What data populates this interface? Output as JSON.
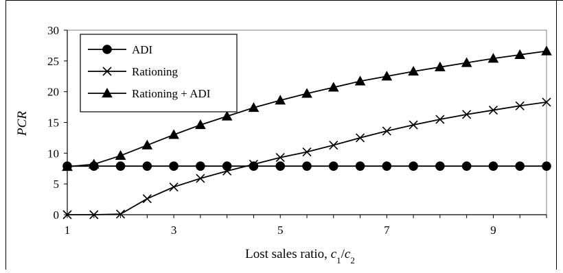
{
  "chart_data": {
    "type": "line",
    "xlabel": "Lost sales ratio, c₁/c₂",
    "ylabel": "PCR",
    "xlim": [
      1,
      10
    ],
    "ylim": [
      0,
      30
    ],
    "xticks": [
      1,
      3,
      5,
      7,
      9
    ],
    "yticks": [
      0,
      5,
      10,
      15,
      20,
      25,
      30
    ],
    "grid": false,
    "legend_position": "top-left",
    "x": [
      1,
      1.5,
      2,
      2.5,
      3,
      3.5,
      4,
      4.5,
      5,
      5.5,
      6,
      6.5,
      7,
      7.5,
      8,
      8.5,
      9,
      9.5,
      10
    ],
    "series": [
      {
        "name": "ADI",
        "marker": "circle",
        "values": [
          7.9,
          7.9,
          7.9,
          7.9,
          7.9,
          7.9,
          7.9,
          7.9,
          7.9,
          7.9,
          7.9,
          7.9,
          7.9,
          7.9,
          7.9,
          7.9,
          7.9,
          7.9,
          7.9
        ]
      },
      {
        "name": "Rationing",
        "marker": "x",
        "values": [
          0.0,
          0.0,
          0.1,
          2.6,
          4.5,
          5.9,
          7.1,
          8.2,
          9.3,
          10.2,
          11.3,
          12.5,
          13.6,
          14.6,
          15.5,
          16.3,
          17.0,
          17.7,
          18.3
        ]
      },
      {
        "name": "Rationing + ADI",
        "marker": "triangle",
        "values": [
          7.8,
          8.2,
          9.6,
          11.3,
          13.0,
          14.6,
          16.0,
          17.4,
          18.6,
          19.7,
          20.7,
          21.7,
          22.5,
          23.3,
          24.0,
          24.7,
          25.4,
          26.0,
          26.6
        ]
      }
    ],
    "colors": {
      "line": "#000000",
      "background": "#ffffff",
      "plot_border": "#808080"
    }
  }
}
